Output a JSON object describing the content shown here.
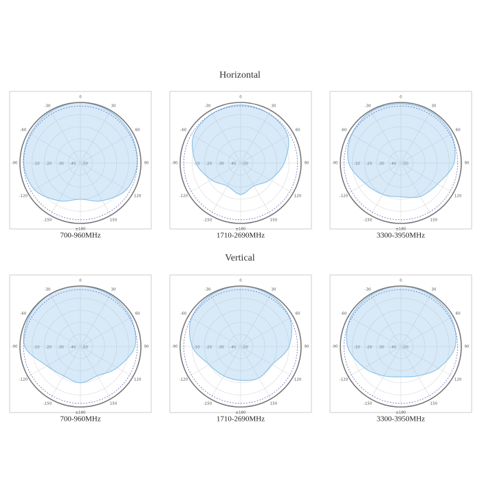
{
  "headings": [
    "Horizontal",
    "Vertical"
  ],
  "chart_data": [
    {
      "type": "polar",
      "title": "700-960MHz",
      "color": "#8ec3ea",
      "theta": [
        0,
        30,
        60,
        90,
        120,
        150,
        180,
        210,
        240,
        270,
        300,
        330
      ],
      "values": [
        0,
        -1,
        -2,
        -3,
        -6,
        -14,
        -20,
        -14,
        -6,
        -3,
        -2,
        -1
      ],
      "reference": -3,
      "rlim": [
        -50,
        0
      ],
      "rticks": [
        -10,
        -20,
        -30,
        -40,
        -50
      ],
      "thetaticks": [
        0,
        30,
        60,
        90,
        120,
        150,
        {
          "value": 180,
          "label": "±180"
        },
        -150,
        -120,
        -90,
        -60,
        -30
      ]
    },
    {
      "type": "polar",
      "title": "1710-2690MHz",
      "color": "#8ec3ea",
      "theta": [
        0,
        30,
        60,
        90,
        120,
        150,
        180,
        210,
        240,
        270,
        300,
        330
      ],
      "values": [
        -2,
        -3,
        -5,
        -14,
        -22,
        -28,
        -24,
        -28,
        -22,
        -13,
        -5,
        -3
      ],
      "reference": -3,
      "rlim": [
        -50,
        0
      ],
      "rticks": [
        -10,
        -20,
        -30,
        -40,
        -50
      ],
      "thetaticks": [
        0,
        30,
        60,
        90,
        120,
        150,
        {
          "value": 180,
          "label": "±180"
        },
        -150,
        -120,
        -90,
        -60,
        -30
      ]
    },
    {
      "type": "polar",
      "title": "3300-3950MHz",
      "color": "#8ec3ea",
      "theta": [
        0,
        30,
        60,
        90,
        120,
        150,
        180,
        210,
        240,
        270,
        300,
        330
      ],
      "values": [
        -1,
        -1,
        -2,
        -6,
        -15,
        -18,
        -22,
        -20,
        -16,
        -7,
        -3,
        -1
      ],
      "reference": -3,
      "rlim": [
        -50,
        0
      ],
      "rticks": [
        -10,
        -20,
        -30,
        -40,
        -50
      ],
      "thetaticks": [
        0,
        30,
        60,
        90,
        120,
        150,
        {
          "value": 180,
          "label": "±180"
        },
        -150,
        -120,
        -90,
        -60,
        -30
      ]
    },
    {
      "type": "polar",
      "title": "700-960MHz",
      "color": "#8ec3ea",
      "theta": [
        0,
        30,
        60,
        90,
        120,
        150,
        180,
        210,
        240,
        270,
        300,
        330
      ],
      "values": [
        0,
        -1,
        -2,
        -5,
        -15,
        -22,
        -20,
        -22,
        -18,
        -4,
        -1,
        0
      ],
      "reference": -3,
      "rlim": [
        -50,
        0
      ],
      "rticks": [
        -10,
        -20,
        -30,
        -40,
        -50
      ],
      "thetaticks": [
        0,
        30,
        60,
        90,
        120,
        150,
        {
          "value": 180,
          "label": "±180"
        },
        -150,
        -120,
        -90,
        -60,
        -30
      ]
    },
    {
      "type": "polar",
      "title": "1710-2690MHz",
      "color": "#8ec3ea",
      "theta": [
        0,
        30,
        60,
        90,
        120,
        150,
        180,
        210,
        240,
        270,
        300,
        330
      ],
      "values": [
        0,
        -1,
        -3,
        -10,
        -20,
        -20,
        -22,
        -22,
        -20,
        -10,
        -3,
        -1
      ],
      "reference": -3,
      "rlim": [
        -50,
        0
      ],
      "rticks": [
        -10,
        -20,
        -30,
        -40,
        -50
      ],
      "thetaticks": [
        0,
        30,
        60,
        90,
        120,
        150,
        {
          "value": 180,
          "label": "±180"
        },
        -150,
        -120,
        -90,
        -60,
        -30
      ]
    },
    {
      "type": "polar",
      "title": "3300-3950MHz",
      "color": "#8ec3ea",
      "theta": [
        0,
        30,
        60,
        90,
        120,
        150,
        180,
        210,
        240,
        270,
        300,
        330
      ],
      "values": [
        0,
        -1,
        -2,
        -5,
        -14,
        -22,
        -25,
        -22,
        -15,
        -6,
        -2,
        -1
      ],
      "reference": -3,
      "rlim": [
        -50,
        0
      ],
      "rticks": [
        -10,
        -20,
        -30,
        -40,
        -50
      ],
      "thetaticks": [
        0,
        30,
        60,
        90,
        120,
        150,
        {
          "value": 180,
          "label": "±180"
        },
        -150,
        -120,
        -90,
        -60,
        -30
      ]
    }
  ]
}
